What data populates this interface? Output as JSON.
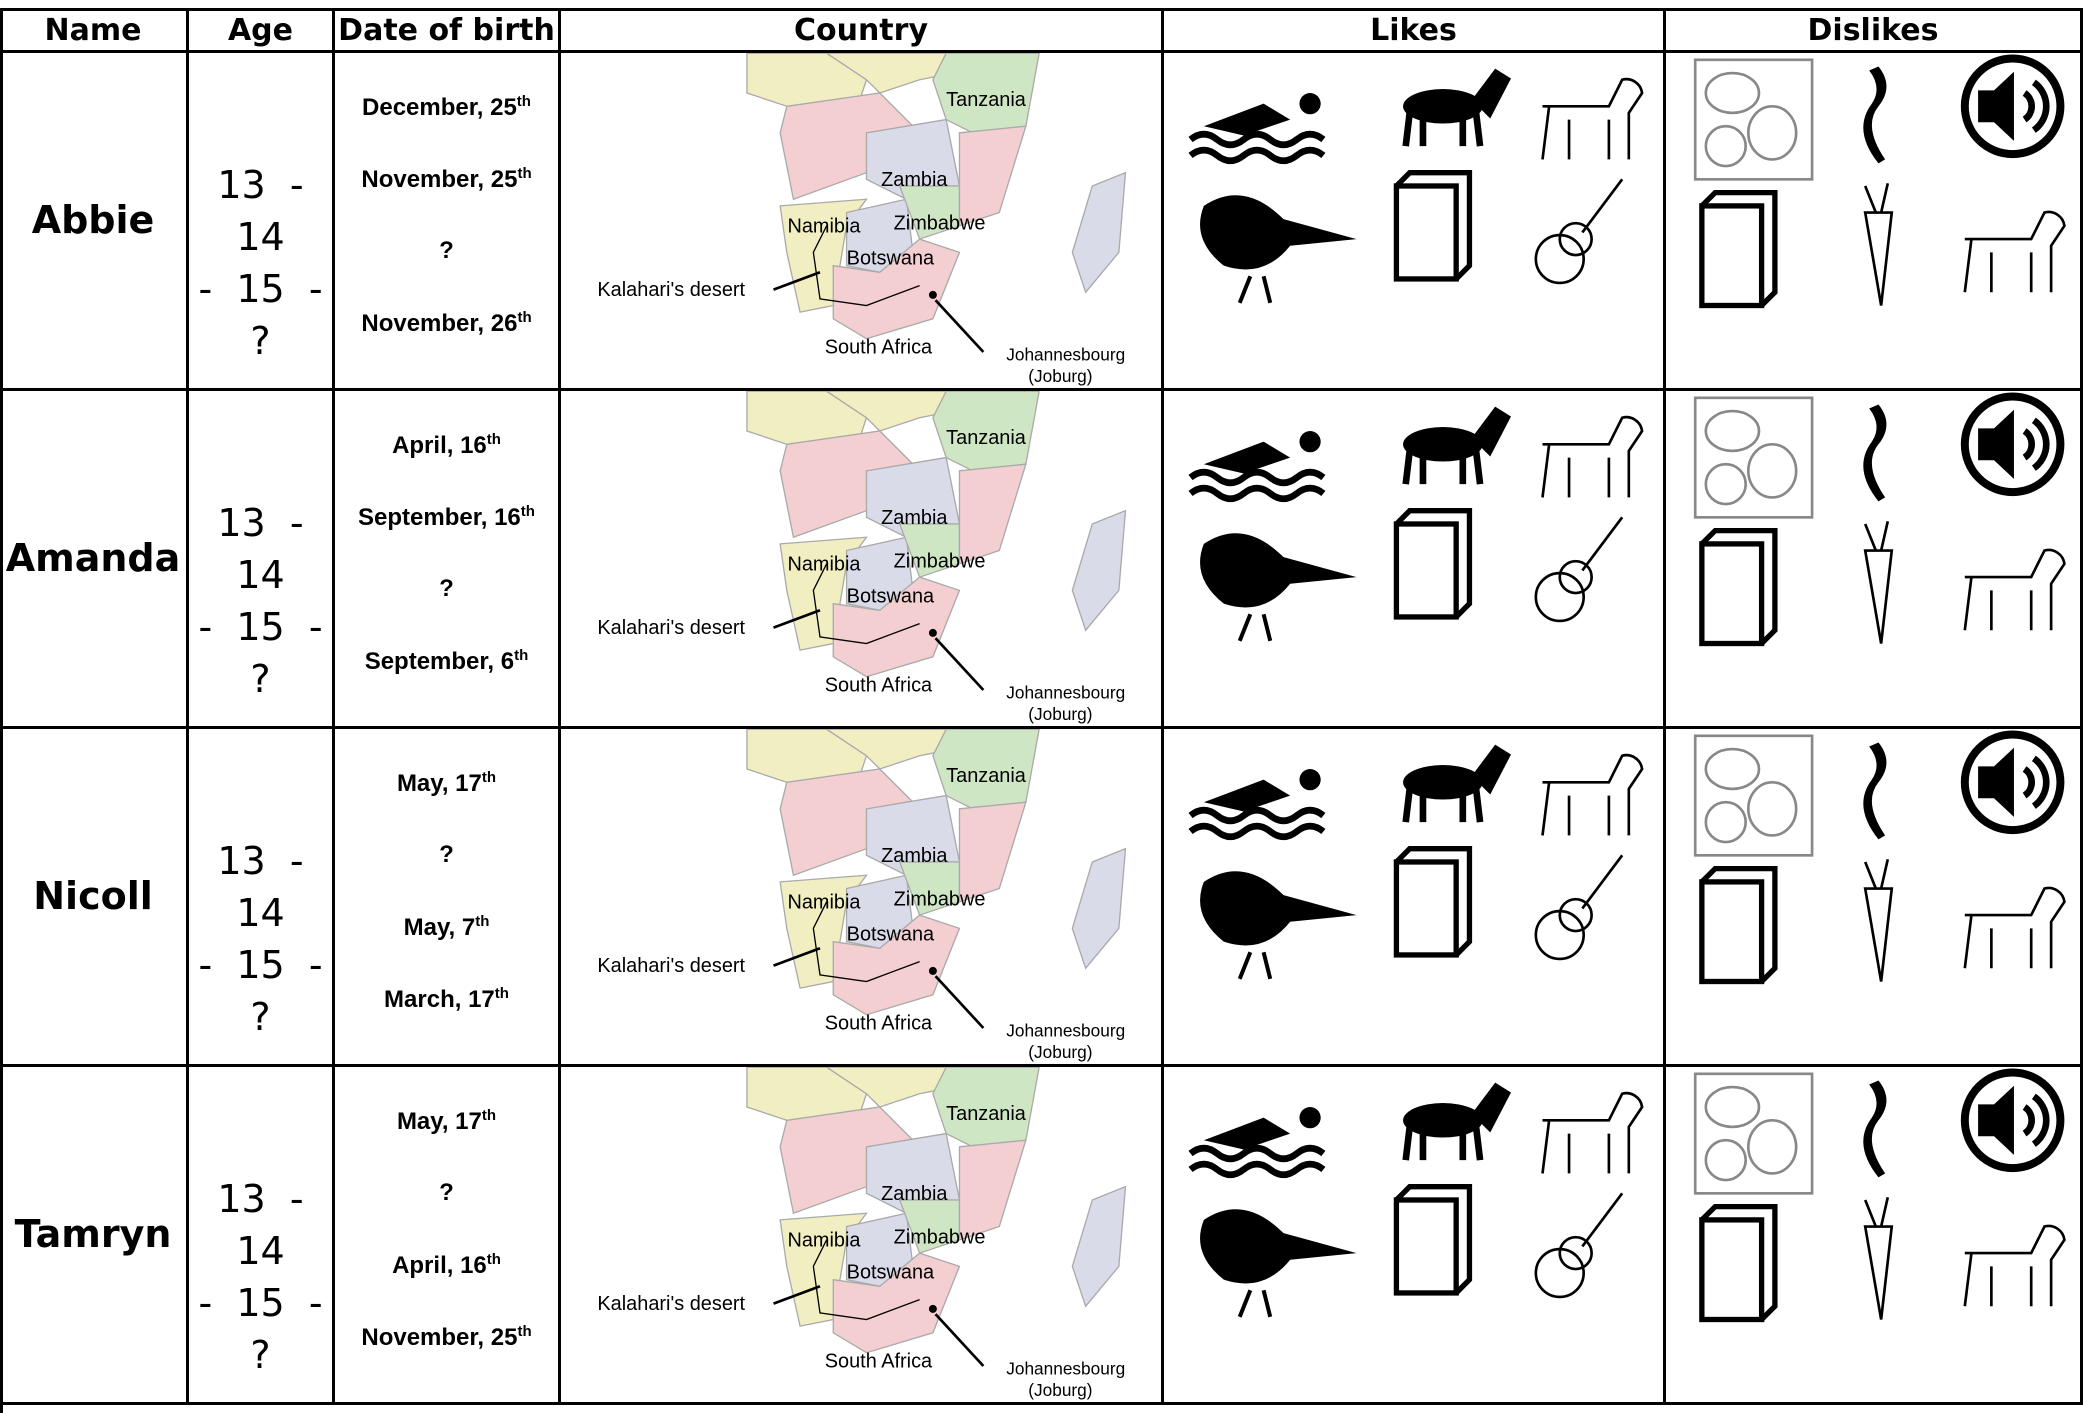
{
  "header": {
    "columns": [
      "Name",
      "Age",
      "Date of birth",
      "Country",
      "Likes",
      "Dislikes"
    ]
  },
  "map_labels": {
    "tanzania": "Tanzania",
    "zambia": "Zambia",
    "namibia": "Namibia",
    "zimbabwe": "Zimbabwe",
    "botswana": "Botswana",
    "kalahari": "Kalahari's desert",
    "south_africa": "South Africa",
    "johannesbourg": "Johannesbourg",
    "joburg": "(Joburg)"
  },
  "rows": [
    {
      "name": "Abbie",
      "age": [
        "13  -",
        "14",
        "-  15  -",
        "?"
      ],
      "dates": [
        {
          "text": "December, 25",
          "sup": "th"
        },
        {
          "text": "November, 25",
          "sup": "th"
        },
        {
          "text": "?"
        },
        {
          "text": "November, 26",
          "sup": "th"
        }
      ]
    },
    {
      "name": "Amanda",
      "age": [
        "13  -",
        "14",
        "-  15  -",
        "?"
      ],
      "dates": [
        {
          "text": "April, 16",
          "sup": "th"
        },
        {
          "text": "September, 16",
          "sup": "th"
        },
        {
          "text": "?"
        },
        {
          "text": "September, 6",
          "sup": "th"
        }
      ]
    },
    {
      "name": "Nicoll",
      "age": [
        "13  -",
        "14",
        "-  15  -",
        "?"
      ],
      "dates": [
        {
          "text": "May, 17",
          "sup": "th"
        },
        {
          "text": "?"
        },
        {
          "text": "May, 7",
          "sup": "th"
        },
        {
          "text": "March, 17",
          "sup": "th"
        }
      ]
    },
    {
      "name": "Tamryn",
      "age": [
        "13  -",
        "14",
        "-  15  -",
        "?"
      ],
      "dates": [
        {
          "text": "May, 17",
          "sup": "th"
        },
        {
          "text": "?"
        },
        {
          "text": "April, 16",
          "sup": "th"
        },
        {
          "text": "November, 25",
          "sup": "th"
        }
      ]
    }
  ]
}
